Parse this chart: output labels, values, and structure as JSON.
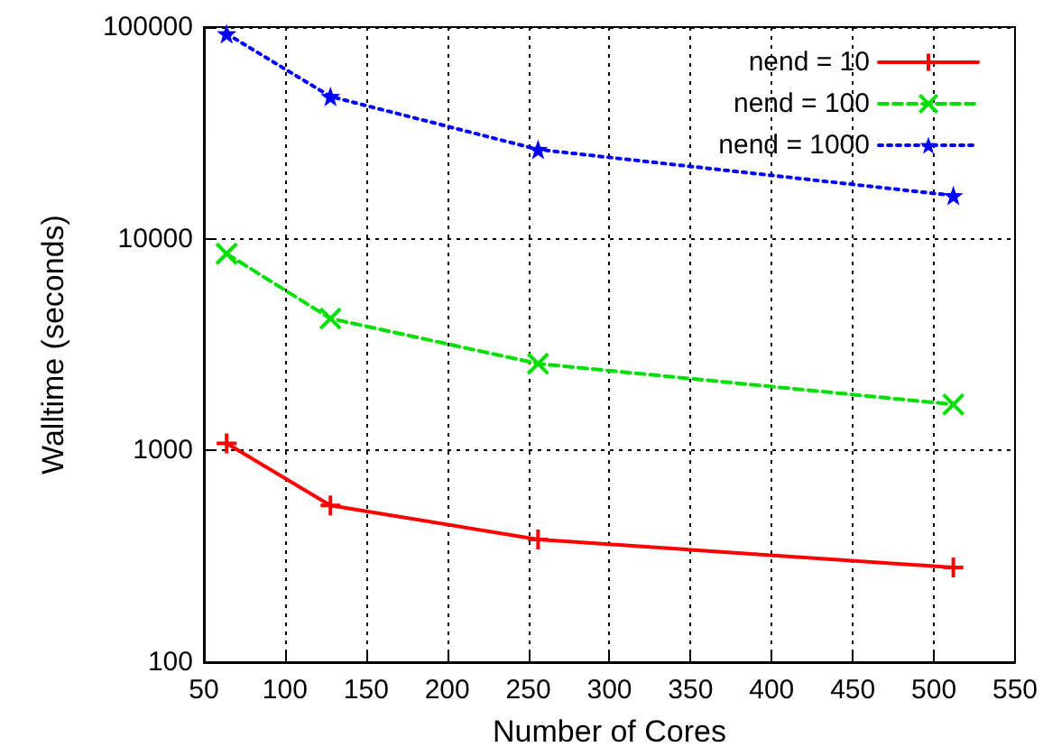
{
  "chart_data": {
    "type": "line",
    "xlabel": "Number of Cores",
    "ylabel": "Walltime (seconds)",
    "x": [
      64,
      128,
      256,
      512
    ],
    "series": [
      {
        "name": "nend = 10",
        "color": "#ff0000",
        "values": [
          1080,
          550,
          380,
          280
        ],
        "marker": "plus",
        "line_style": "solid"
      },
      {
        "name": "nend = 100",
        "color": "#00e000",
        "values": [
          8500,
          4200,
          2570,
          1650
        ],
        "marker": "cross",
        "line_style": "dashed"
      },
      {
        "name": "nend = 1000",
        "color": "#0000ff",
        "values": [
          93000,
          47000,
          26400,
          16000
        ],
        "marker": "star",
        "line_style": "dotted"
      }
    ],
    "xlim": [
      50,
      550
    ],
    "xticks": [
      50,
      100,
      150,
      200,
      250,
      300,
      350,
      400,
      450,
      500,
      550
    ],
    "ylim": [
      100,
      100000
    ],
    "yticks": [
      100,
      1000,
      10000,
      100000
    ],
    "log": "y",
    "grid": true,
    "legend": "top right"
  }
}
